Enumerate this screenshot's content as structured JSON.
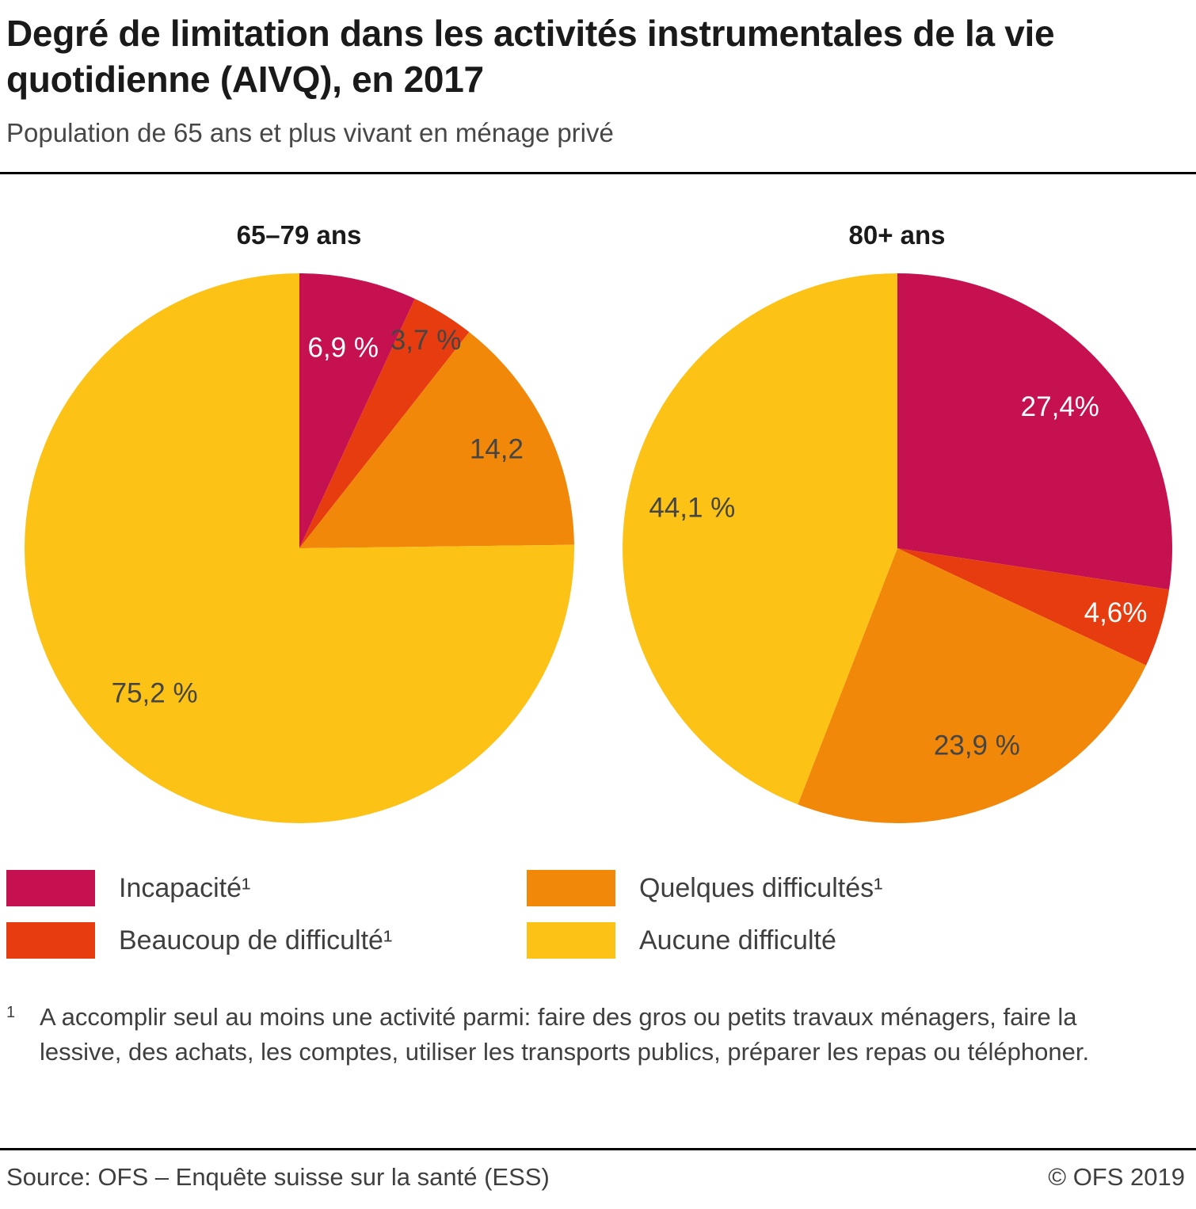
{
  "page": {
    "title": "Degré de limitation dans les activités instrumentales de la vie quotidienne (AIVQ), en 2017",
    "subtitle": "Population de 65 ans et plus vivant en ménage privé"
  },
  "legend": {
    "items": [
      {
        "key": "incapacite",
        "label": "Incapacité¹",
        "color": "#c51150"
      },
      {
        "key": "beaucoup-de-difficulte",
        "label": "Beaucoup de difficulté¹",
        "color": "#e63c10"
      },
      {
        "key": "quelques-difficultes",
        "label": "Quelques difficultés¹",
        "color": "#f2880a"
      },
      {
        "key": "aucune-difficulte",
        "label": "Aucune difficulté",
        "color": "#fcc216"
      }
    ]
  },
  "footnote": {
    "marker": "1",
    "text": "A accomplir seul au moins une activité parmi: faire des gros ou petits travaux ménagers, faire la lessive, des achats, les comptes, utiliser les transports publics, préparer les repas ou téléphoner."
  },
  "footer": {
    "source": "Source: OFS – Enquête suisse sur la santé (ESS)",
    "copyright": "© OFS 2019"
  },
  "chart_data": [
    {
      "type": "pie",
      "title": "65–79 ans",
      "unit": "percent",
      "start_angle_deg": 0,
      "direction": "clockwise",
      "slices": [
        {
          "key": "incapacite",
          "name": "Incapacité",
          "value": 6.9,
          "label": "6,9 %",
          "color": "#c51150",
          "label_color": "#ffffff",
          "label_radius": 0.74
        },
        {
          "key": "beaucoup-de-difficulte",
          "name": "Beaucoup de difficulté",
          "value": 3.7,
          "label": "3,7 %",
          "color": "#e63c10",
          "label_color": "#454545",
          "label_radius": 0.88
        },
        {
          "key": "quelques-difficultes",
          "name": "Quelques difficultés",
          "value": 14.2,
          "label": "14,2",
          "color": "#f2880a",
          "label_color": "#454545",
          "label_radius": 0.8
        },
        {
          "key": "aucune-difficulte",
          "name": "Aucune difficulté",
          "value": 75.2,
          "label": "75,2 %",
          "color": "#fcc216",
          "label_color": "#454545",
          "label_radius": 0.75
        }
      ]
    },
    {
      "type": "pie",
      "title": "80+ ans",
      "unit": "percent",
      "start_angle_deg": 0,
      "direction": "clockwise",
      "slices": [
        {
          "key": "incapacite",
          "name": "Incapacité",
          "value": 27.4,
          "label": "27,4%",
          "color": "#c51150",
          "label_color": "#ffffff",
          "label_radius": 0.78
        },
        {
          "key": "beaucoup-de-difficulte",
          "name": "Beaucoup de difficulté",
          "value": 4.6,
          "label": "4,6%",
          "color": "#e63c10",
          "label_color": "#ffffff",
          "label_radius": 0.83
        },
        {
          "key": "quelques-difficultes",
          "name": "Quelques difficultés",
          "value": 23.9,
          "label": "23,9 %",
          "color": "#f2880a",
          "label_color": "#454545",
          "label_radius": 0.78
        },
        {
          "key": "aucune-difficulte",
          "name": "Aucune difficulté",
          "value": 44.1,
          "label": "44,1 %",
          "color": "#fcc216",
          "label_color": "#454545",
          "label_radius": 0.76
        }
      ]
    }
  ]
}
